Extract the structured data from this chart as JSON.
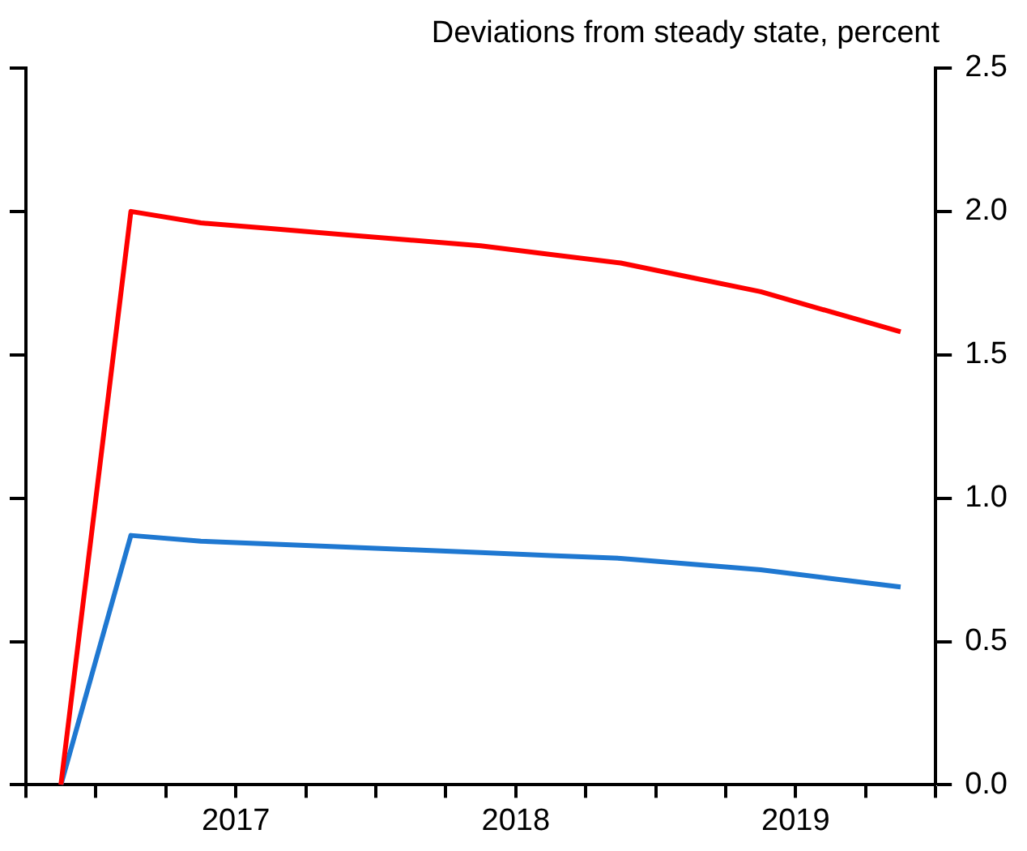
{
  "chart_data": {
    "type": "line",
    "ylabel": "Deviations from steady state, percent",
    "x": [
      2016.875,
      2017.125,
      2017.375,
      2017.625,
      2017.875,
      2018.125,
      2018.375,
      2018.625,
      2018.875,
      2019.125,
      2019.375,
      2019.625,
      2019.875
    ],
    "series": [
      {
        "color": "#ff0000",
        "values": [
          0,
          2.0,
          1.96,
          1.94,
          1.92,
          1.9,
          1.88,
          1.85,
          1.82,
          1.77,
          1.72,
          1.65,
          1.58
        ]
      },
      {
        "color": "#1f78d1",
        "values": [
          0,
          0.87,
          0.85,
          0.84,
          0.83,
          0.82,
          0.81,
          0.8,
          0.79,
          0.77,
          0.75,
          0.72,
          0.69
        ]
      }
    ],
    "xlim": [
      2016.75,
      2020
    ],
    "xticks": [
      {
        "value": 2016.75,
        "label": null
      },
      {
        "value": 2017,
        "label": null
      },
      {
        "value": 2017.25,
        "label": null
      },
      {
        "value": 2017.5,
        "label": "2017"
      },
      {
        "value": 2017.75,
        "label": null
      },
      {
        "value": 2018,
        "label": null
      },
      {
        "value": 2018.25,
        "label": null
      },
      {
        "value": 2018.5,
        "label": "2018"
      },
      {
        "value": 2018.75,
        "label": null
      },
      {
        "value": 2019,
        "label": null
      },
      {
        "value": 2019.25,
        "label": null
      },
      {
        "value": 2019.5,
        "label": "2019"
      },
      {
        "value": 2019.75,
        "label": null
      },
      {
        "value": 2020,
        "label": null
      }
    ],
    "ylim": [
      0,
      2.5
    ],
    "yticks": [
      {
        "value": 0,
        "label": "0.0"
      },
      {
        "value": 0.5,
        "label": "0.5"
      },
      {
        "value": 1,
        "label": "1.0"
      },
      {
        "value": 1.5,
        "label": "1.5"
      },
      {
        "value": 2,
        "label": "2.0"
      },
      {
        "value": 2.5,
        "label": "2.5"
      }
    ],
    "grid": false,
    "legend": false,
    "marker": "none",
    "line_style": "solid"
  }
}
